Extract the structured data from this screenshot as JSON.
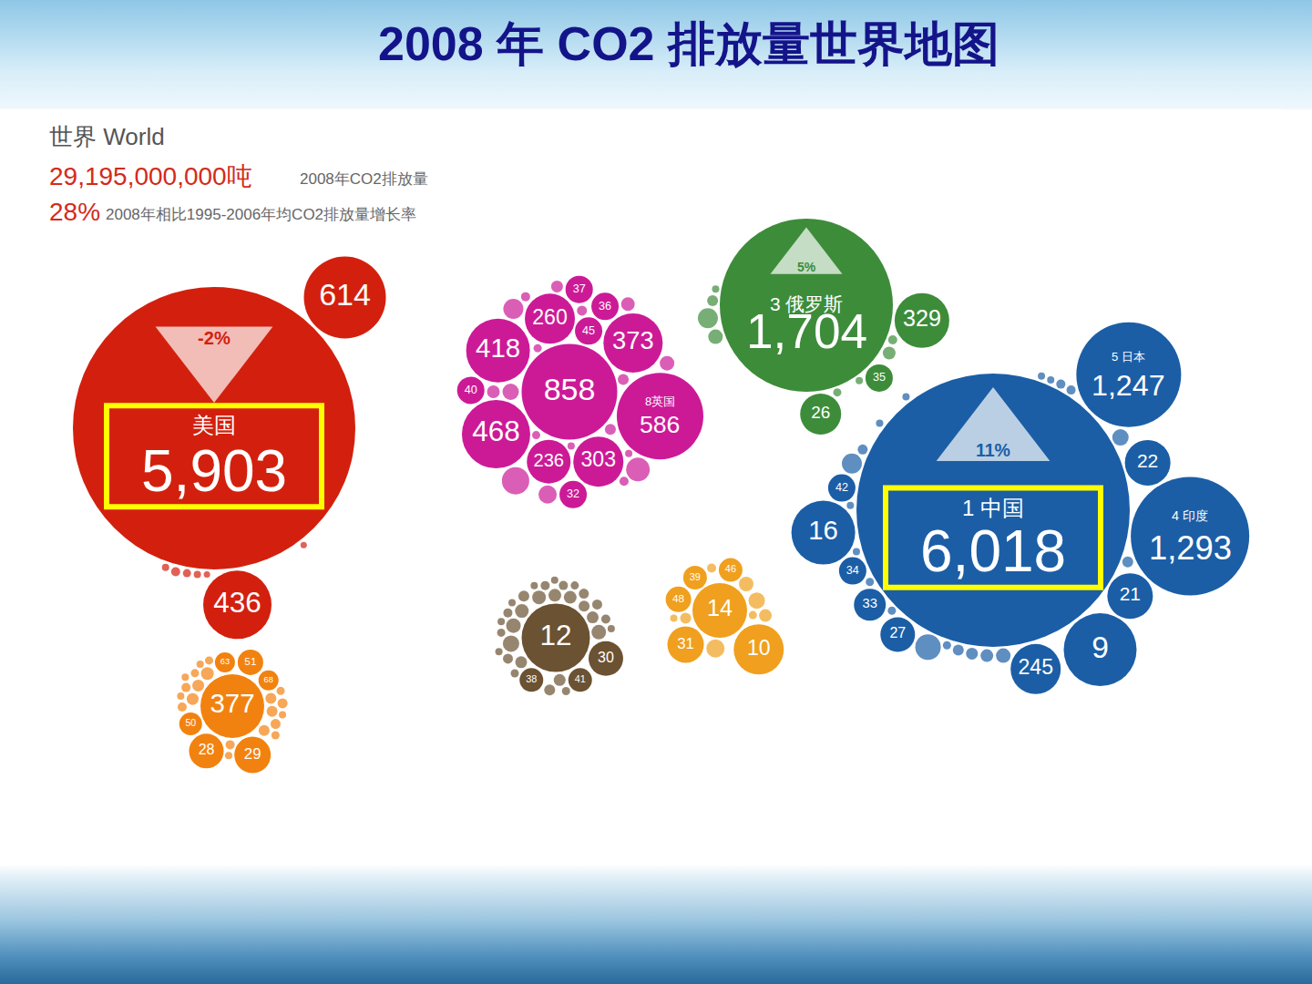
{
  "chart_data": {
    "type": "bubble",
    "title": "2008 年 CO2 排放量世界地图",
    "tick_labels": false,
    "data_labels": true,
    "world": {
      "label": "世界 World",
      "total": {
        "value": 29195000000,
        "label": "29,195,000,000吨"
      },
      "total_caption": "2008年CO2排放量",
      "growth": {
        "value": 28,
        "label": "28%"
      },
      "growth_caption": "2008年相比1995-2006年均CO2排放量增长率"
    },
    "groups": [
      {
        "color": "#d3200e",
        "bubbles": [
          {
            "name": "美国",
            "value": 5903,
            "value_label": "5,903",
            "size": 310,
            "change": {
              "value": -2,
              "label": "-2%"
            }
          },
          {
            "value": 614,
            "size": 90
          },
          {
            "value": 436,
            "size": 75
          }
        ],
        "dots": [
          10,
          9,
          8,
          8,
          7,
          7
        ]
      },
      {
        "color": "#f2820f",
        "bubbles": [
          {
            "value": 377,
            "size": 70
          },
          {
            "value": 29,
            "size": 40
          },
          {
            "value": 28,
            "size": 38
          },
          {
            "value": 51,
            "size": 28
          },
          {
            "value": 50,
            "size": 25
          },
          {
            "value": 68,
            "size": 22
          },
          {
            "value": 63,
            "size": 22
          }
        ],
        "dots": [
          14,
          13,
          13,
          12,
          12,
          12,
          11,
          11,
          10,
          10,
          10,
          9,
          9,
          9,
          9,
          8,
          8,
          8,
          8,
          8
        ]
      },
      {
        "color": "#cc1a97",
        "bubbles": [
          {
            "value": 858,
            "size": 105
          },
          {
            "name": "8英国",
            "value": 586,
            "size": 95
          },
          {
            "value": 468,
            "size": 75
          },
          {
            "value": 418,
            "size": 70
          },
          {
            "value": 373,
            "size": 65
          },
          {
            "value": 303,
            "size": 55
          },
          {
            "value": 260,
            "size": 55
          },
          {
            "value": 236,
            "size": 48
          },
          {
            "value": 45,
            "size": 30
          },
          {
            "value": 36,
            "size": 30
          },
          {
            "value": 40,
            "size": 30
          },
          {
            "value": 37,
            "size": 30
          },
          {
            "value": 32,
            "size": 30
          }
        ],
        "dots": [
          30,
          26,
          22,
          20,
          18,
          16,
          15,
          14,
          13,
          12,
          12,
          11,
          10,
          10,
          9,
          9,
          8,
          8
        ]
      },
      {
        "color": "#3d8c3a",
        "bubbles": [
          {
            "name": "3 俄罗斯",
            "value": 1704,
            "value_label": "1,704",
            "size": 190,
            "change": {
              "value": 5,
              "label": "5%"
            }
          },
          {
            "value": 329,
            "size": 60
          },
          {
            "value": 26,
            "size": 45
          },
          {
            "value": 35,
            "size": 30
          }
        ],
        "dots": [
          22,
          16,
          14,
          12,
          10,
          9,
          8,
          8
        ]
      },
      {
        "color": "#6b5232",
        "bubbles": [
          {
            "value": 12,
            "size": 75
          },
          {
            "value": 30,
            "size": 38
          },
          {
            "value": 41,
            "size": 26
          },
          {
            "value": 38,
            "size": 26
          }
        ],
        "dots": [
          18,
          16,
          16,
          15,
          15,
          14,
          14,
          13,
          13,
          13,
          12,
          12,
          12,
          11,
          11,
          11,
          10,
          10,
          10,
          10,
          9,
          9,
          9,
          9,
          8,
          8,
          8,
          8,
          8,
          8
        ]
      },
      {
        "color": "#f0a01e",
        "bubbles": [
          {
            "value": 14,
            "size": 60
          },
          {
            "value": 10,
            "size": 55
          },
          {
            "value": 31,
            "size": 40
          },
          {
            "value": 48,
            "size": 28
          },
          {
            "value": 39,
            "size": 26
          },
          {
            "value": 46,
            "size": 26
          }
        ],
        "dots": [
          20,
          18,
          16,
          14,
          12,
          10,
          9,
          8
        ]
      },
      {
        "color": "#1b5ea6",
        "bubbles": [
          {
            "name": "1 中国",
            "value": 6018,
            "value_label": "6,018",
            "size": 300,
            "change": {
              "value": 11,
              "label": "11%"
            }
          },
          {
            "name": "4 印度",
            "value": 1293,
            "value_label": "1,293",
            "size": 130
          },
          {
            "name": "5 日本",
            "value": 1247,
            "value_label": "1,247",
            "size": 115
          },
          {
            "value": 9,
            "size": 80
          },
          {
            "value": 16,
            "size": 70
          },
          {
            "value": 245,
            "size": 55
          },
          {
            "value": 22,
            "size": 50
          },
          {
            "value": 21,
            "size": 50
          },
          {
            "value": 27,
            "size": 38
          },
          {
            "value": 33,
            "size": 35
          },
          {
            "value": 34,
            "size": 30
          },
          {
            "value": 42,
            "size": 30
          }
        ],
        "dots": [
          28,
          22,
          18,
          16,
          14,
          13,
          12,
          12,
          11,
          10,
          10,
          9,
          9,
          9,
          8,
          8,
          8,
          8,
          8,
          8
        ]
      }
    ]
  }
}
